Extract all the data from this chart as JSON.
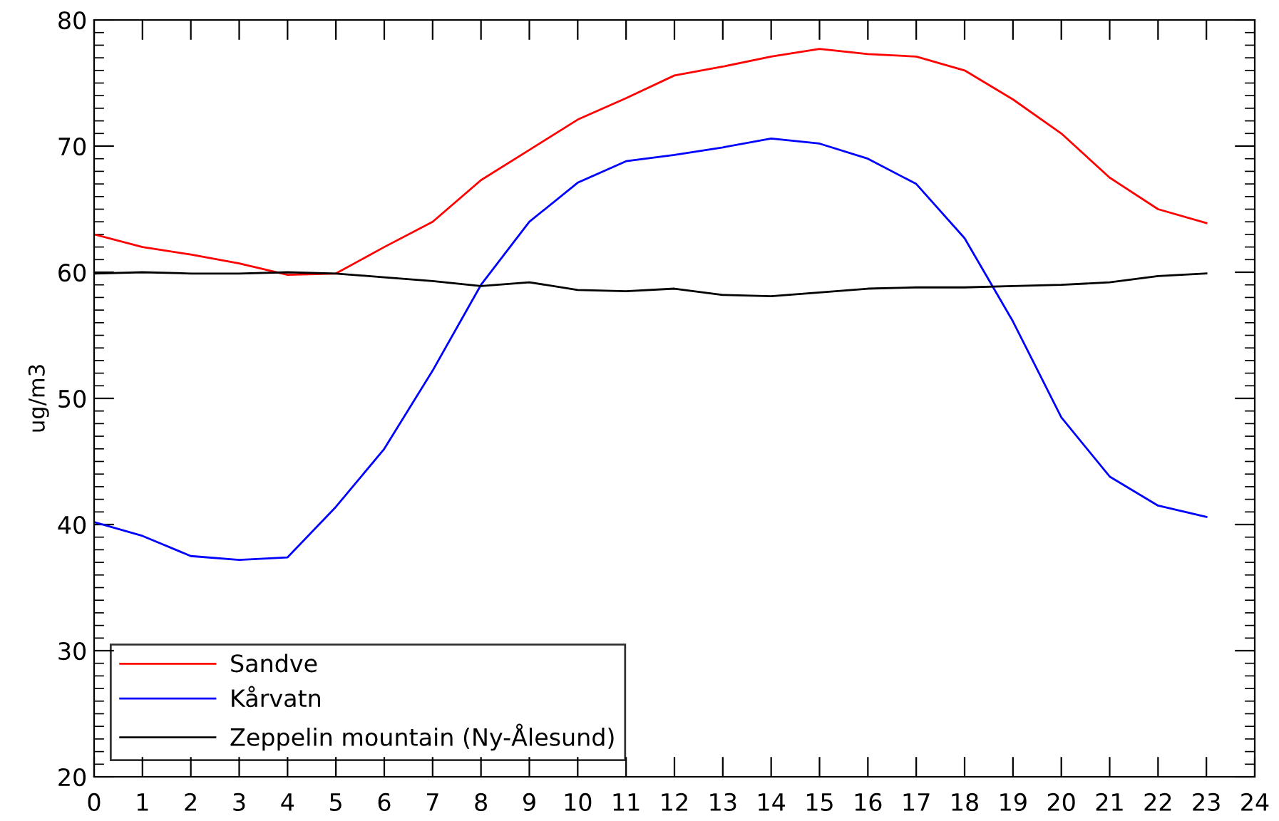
{
  "chart_data": {
    "type": "line",
    "ylabel": "ug/m3",
    "x": [
      0,
      1,
      2,
      3,
      4,
      5,
      6,
      7,
      8,
      9,
      10,
      11,
      12,
      13,
      14,
      15,
      16,
      17,
      18,
      19,
      20,
      21,
      22,
      23
    ],
    "series": [
      {
        "name": "Sandve",
        "color": "#ff0000",
        "values": [
          63,
          62,
          61.4,
          60.7,
          59.8,
          59.9,
          62,
          64,
          67.3,
          69.7,
          72.1,
          73.8,
          75.6,
          76.3,
          77.1,
          77.7,
          77.3,
          77.1,
          76,
          73.7,
          71,
          67.5,
          65,
          63.9
        ]
      },
      {
        "name": "Kårvatn",
        "color": "#0000ff",
        "values": [
          40.2,
          39.1,
          37.5,
          37.2,
          37.4,
          41.4,
          46,
          52.2,
          59,
          64,
          67.1,
          68.8,
          69.3,
          69.9,
          70.6,
          70.2,
          69,
          67,
          62.7,
          56.1,
          48.5,
          43.8,
          41.5,
          40.6
        ]
      },
      {
        "name": "Zeppelin mountain (Ny-Ålesund)",
        "color": "#000000",
        "values": [
          59.9,
          60,
          59.9,
          59.9,
          60,
          59.9,
          59.6,
          59.3,
          58.9,
          59.2,
          58.6,
          58.5,
          58.7,
          58.2,
          58.1,
          58.4,
          58.7,
          58.8,
          58.8,
          58.9,
          59,
          59.2,
          59.7,
          59.9
        ]
      }
    ],
    "xlim": [
      0,
      24
    ],
    "xticks": [
      0,
      1,
      2,
      3,
      4,
      5,
      6,
      7,
      8,
      9,
      10,
      11,
      12,
      13,
      14,
      15,
      16,
      17,
      18,
      19,
      20,
      21,
      22,
      23,
      24
    ],
    "ylim": [
      20,
      80
    ],
    "yticks": [
      20,
      30,
      40,
      50,
      60,
      70,
      80
    ],
    "grid": false,
    "legend": "bottom left",
    "marker": "none",
    "line_style": "solid"
  }
}
